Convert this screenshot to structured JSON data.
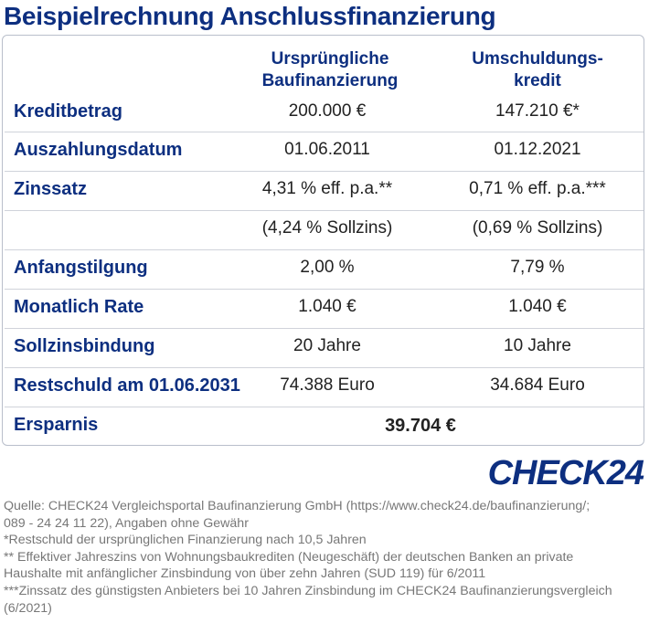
{
  "title": "Beispielrechnung Anschlussfinanzierung",
  "columns": {
    "col1_line1": "Ursprüngliche",
    "col1_line2": "Baufinanzierung",
    "col2_line1": "Umschuldungs-",
    "col2_line2": "kredit"
  },
  "rows": [
    {
      "label": "Kreditbetrag",
      "col1": "200.000 €",
      "col2": "147.210 €*"
    },
    {
      "label": "Auszahlungsdatum",
      "col1": "01.06.2011",
      "col2": "01.12.2021"
    },
    {
      "label": "Zinssatz",
      "col1": "4,31 % eff. p.a.**",
      "col2": "0,71 % eff. p.a.***"
    },
    {
      "label": "",
      "col1": "(4,24 % Sollzins)",
      "col2": "(0,69 % Sollzins)"
    },
    {
      "label": "Anfangstilgung",
      "col1": "2,00 %",
      "col2": "7,79 %"
    },
    {
      "label": "Monatlich Rate",
      "col1": "1.040 €",
      "col2": "1.040 €"
    },
    {
      "label": "Sollzinsbindung",
      "col1": "20 Jahre",
      "col2": "10 Jahre"
    },
    {
      "label": "Restschuld am 01.06.2031",
      "col1": "74.388 Euro",
      "col2": "34.684 Euro"
    }
  ],
  "savings": {
    "label": "Ersparnis",
    "value": "39.704 €"
  },
  "logo": "CHECK24",
  "footnotes": [
    "Quelle: CHECK24 Vergleichsportal Baufinanzierung GmbH (https://www.check24.de/baufinanzierung/;",
    "089 - 24 24 11 22), Angaben ohne Gewähr",
    "*Restschuld der ursprünglichen Finanzierung nach 10,5 Jahren",
    "** Effektiver Jahreszins von Wohnungsbaukrediten (Neugeschäft) der deutschen Banken an private",
    "Haushalte mit anfänglicher Zinsbindung von über zehn Jahren (SUD 119) für 6/2011",
    "***Zinssatz des günstigsten Anbieters bei 10 Jahren Zinsbindung im CHECK24 Baufinanzierungsvergleich",
    "(6/2021)"
  ]
}
